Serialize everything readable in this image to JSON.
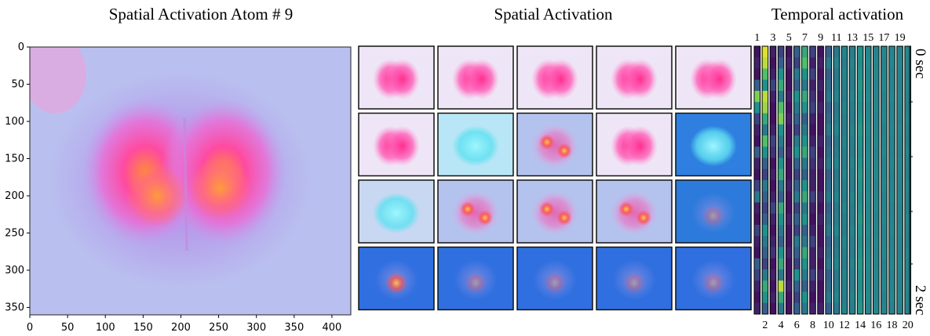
{
  "titles": {
    "atom": "Spatial Activation Atom # 9",
    "grid": "Spatial Activation",
    "temporal": "Temporal activation"
  },
  "colors": {
    "background_lavender": "#b9bdf0",
    "hot_pink": "#ff3fb0",
    "orange": "#ff8a3a",
    "cyan": "#6fe6f0",
    "blue": "#2f6fe0",
    "dark_purple": "#3b1458",
    "teal": "#21918c",
    "yellow": "#f6e82a"
  },
  "chart_data": [
    {
      "type": "heatmap",
      "title": "Spatial Activation Atom # 9",
      "xlim": [
        0,
        425
      ],
      "ylim": [
        360,
        0
      ],
      "xticks": [
        0,
        50,
        100,
        150,
        200,
        250,
        300,
        350,
        400
      ],
      "yticks": [
        0,
        50,
        100,
        150,
        200,
        250,
        300,
        350
      ],
      "xlabel": "",
      "ylabel": "",
      "grid": false
    },
    {
      "type": "heatmap",
      "title": "Spatial Activation",
      "rows": 4,
      "cols": 5,
      "tiles": [
        [
          "pink",
          "pink",
          "pink",
          "pink",
          "pink"
        ],
        [
          "pink",
          "cyan",
          "mixed",
          "pink",
          "cyan"
        ],
        [
          "cyan",
          "mixed",
          "mixed",
          "mixed",
          "blue"
        ],
        [
          "blue",
          "blue",
          "blue",
          "blue",
          "blue"
        ]
      ]
    },
    {
      "type": "heatmap",
      "title": "Temporal activation",
      "columns_top_labels": [
        "1",
        "3",
        "5",
        "7",
        "9",
        "11",
        "13",
        "15",
        "17",
        "19"
      ],
      "columns_bottom_labels": [
        "2",
        "4",
        "6",
        "8",
        "10",
        "12",
        "14",
        "16",
        "18",
        "20"
      ],
      "n_columns": 20,
      "y_labels": {
        "top": "0 sec",
        "bottom": "2 sec"
      },
      "colormap": "viridis",
      "column_values": [
        [
          0.05,
          0.1,
          0.05,
          0.3,
          0.8,
          0.5,
          0.2,
          0.1,
          0.05,
          0.3,
          0.1,
          0.05,
          0.2,
          0.4,
          0.1,
          0.05,
          0.2,
          0.1,
          0.05,
          0.3,
          0.2,
          0.1,
          0.05,
          0.1
        ],
        [
          0.95,
          0.9,
          0.7,
          0.5,
          0.9,
          0.85,
          0.6,
          0.4,
          0.7,
          0.5,
          0.3,
          0.2,
          0.4,
          0.3,
          0.2,
          0.3,
          0.5,
          0.4,
          0.3,
          0.2,
          0.4,
          0.6,
          0.5,
          0.3
        ],
        [
          0.1,
          0.05,
          0.1,
          0.2,
          0.1,
          0.05,
          0.05,
          0.1,
          0.2,
          0.15,
          0.05,
          0.1,
          0.05,
          0.1,
          0.2,
          0.1,
          0.05,
          0.1,
          0.15,
          0.05,
          0.1,
          0.05,
          0.1,
          0.05
        ],
        [
          0.2,
          0.3,
          0.5,
          0.6,
          0.4,
          0.7,
          0.8,
          0.5,
          0.4,
          0.3,
          0.5,
          0.6,
          0.4,
          0.3,
          0.6,
          0.5,
          0.4,
          0.3,
          0.5,
          0.6,
          0.4,
          0.9,
          0.6,
          0.4
        ],
        [
          0.05,
          0.1,
          0.05,
          0.05,
          0.1,
          0.05,
          0.1,
          0.05,
          0.05,
          0.1,
          0.05,
          0.05,
          0.1,
          0.05,
          0.05,
          0.1,
          0.05,
          0.05,
          0.1,
          0.05,
          0.05,
          0.1,
          0.05,
          0.05
        ],
        [
          0.3,
          0.2,
          0.4,
          0.3,
          0.5,
          0.4,
          0.3,
          0.2,
          0.4,
          0.5,
          0.3,
          0.2,
          0.3,
          0.4,
          0.2,
          0.3,
          0.2,
          0.4,
          0.3,
          0.2,
          0.5,
          0.3,
          0.2,
          0.3
        ],
        [
          0.6,
          0.7,
          0.5,
          0.4,
          0.6,
          0.5,
          0.3,
          0.4,
          0.5,
          0.6,
          0.4,
          0.3,
          0.5,
          0.6,
          0.4,
          0.5,
          0.3,
          0.4,
          0.6,
          0.5,
          0.4,
          0.3,
          0.5,
          0.4
        ],
        [
          0.2,
          0.1,
          0.2,
          0.1,
          0.15,
          0.2,
          0.1,
          0.05,
          0.1,
          0.2,
          0.15,
          0.1,
          0.1,
          0.2,
          0.1,
          0.05,
          0.1,
          0.2,
          0.1,
          0.1,
          0.2,
          0.1,
          0.05,
          0.1
        ],
        [
          0.05,
          0.1,
          0.05,
          0.1,
          0.05,
          0.1,
          0.05,
          0.05,
          0.1,
          0.05,
          0.1,
          0.05,
          0.05,
          0.1,
          0.05,
          0.1,
          0.05,
          0.05,
          0.1,
          0.05,
          0.1,
          0.05,
          0.05,
          0.1
        ],
        [
          0.3,
          0.4,
          0.3,
          0.35,
          0.4,
          0.3,
          0.35,
          0.4,
          0.3,
          0.35,
          0.4,
          0.3,
          0.35,
          0.4,
          0.3,
          0.35,
          0.4,
          0.3,
          0.35,
          0.4,
          0.3,
          0.35,
          0.4,
          0.3
        ],
        [
          0.4,
          0.45,
          0.4,
          0.42,
          0.45,
          0.4,
          0.42,
          0.45,
          0.4,
          0.42,
          0.45,
          0.4,
          0.42,
          0.45,
          0.4,
          0.42,
          0.45,
          0.4,
          0.42,
          0.45,
          0.4,
          0.42,
          0.45,
          0.4
        ],
        [
          0.45,
          0.42,
          0.45,
          0.43,
          0.42,
          0.45,
          0.43,
          0.42,
          0.45,
          0.43,
          0.42,
          0.45,
          0.43,
          0.42,
          0.45,
          0.43,
          0.42,
          0.45,
          0.43,
          0.42,
          0.45,
          0.43,
          0.42,
          0.45
        ],
        [
          0.42,
          0.45,
          0.43,
          0.42,
          0.45,
          0.43,
          0.42,
          0.45,
          0.43,
          0.42,
          0.45,
          0.43,
          0.42,
          0.45,
          0.43,
          0.42,
          0.45,
          0.43,
          0.42,
          0.45,
          0.43,
          0.42,
          0.45,
          0.43
        ],
        [
          0.5,
          0.48,
          0.5,
          0.52,
          0.5,
          0.48,
          0.5,
          0.52,
          0.5,
          0.48,
          0.5,
          0.52,
          0.5,
          0.48,
          0.5,
          0.52,
          0.5,
          0.48,
          0.5,
          0.52,
          0.5,
          0.48,
          0.5,
          0.52
        ],
        [
          0.45,
          0.47,
          0.45,
          0.46,
          0.47,
          0.45,
          0.46,
          0.47,
          0.45,
          0.46,
          0.47,
          0.45,
          0.46,
          0.47,
          0.45,
          0.46,
          0.47,
          0.45,
          0.46,
          0.47,
          0.45,
          0.46,
          0.47,
          0.45
        ],
        [
          0.44,
          0.45,
          0.46,
          0.44,
          0.45,
          0.46,
          0.44,
          0.45,
          0.46,
          0.44,
          0.45,
          0.46,
          0.44,
          0.45,
          0.46,
          0.44,
          0.45,
          0.46,
          0.44,
          0.45,
          0.46,
          0.44,
          0.45,
          0.46
        ],
        [
          0.46,
          0.44,
          0.45,
          0.46,
          0.44,
          0.45,
          0.46,
          0.44,
          0.45,
          0.46,
          0.44,
          0.45,
          0.46,
          0.44,
          0.45,
          0.46,
          0.44,
          0.45,
          0.46,
          0.44,
          0.45,
          0.46,
          0.44,
          0.45
        ],
        [
          0.45,
          0.46,
          0.44,
          0.45,
          0.46,
          0.44,
          0.45,
          0.46,
          0.44,
          0.45,
          0.46,
          0.44,
          0.45,
          0.46,
          0.44,
          0.45,
          0.46,
          0.44,
          0.45,
          0.46,
          0.44,
          0.45,
          0.46,
          0.44
        ],
        [
          0.44,
          0.46,
          0.45,
          0.44,
          0.46,
          0.45,
          0.44,
          0.46,
          0.45,
          0.44,
          0.46,
          0.45,
          0.44,
          0.46,
          0.45,
          0.44,
          0.46,
          0.45,
          0.44,
          0.46,
          0.45,
          0.44,
          0.46,
          0.45
        ],
        [
          0.46,
          0.45,
          0.44,
          0.46,
          0.45,
          0.44,
          0.46,
          0.45,
          0.44,
          0.46,
          0.45,
          0.44,
          0.46,
          0.45,
          0.44,
          0.46,
          0.45,
          0.44,
          0.46,
          0.45,
          0.44,
          0.46,
          0.45,
          0.44
        ]
      ]
    }
  ]
}
